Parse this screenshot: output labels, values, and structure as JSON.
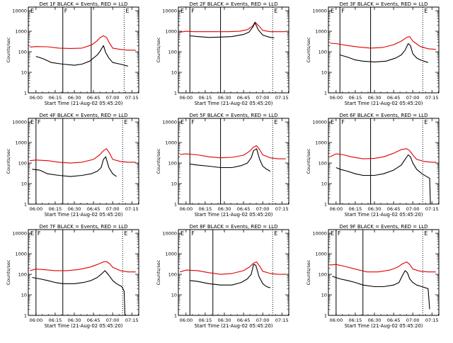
{
  "ylabel": "Counts/sec",
  "xlabel": "Start Time (21-Aug-02 05:45:20)",
  "x_ticks": [
    "06:00",
    "06:15",
    "06:30",
    "06:45",
    "07:00",
    "07:15"
  ],
  "y_ticks": [
    "1",
    "10",
    "100",
    "1000",
    "10000"
  ],
  "colors": {
    "events": "#000000",
    "lld": "#e00000",
    "axis": "#000000",
    "marker": "#000000"
  },
  "chart_data": [
    {
      "type": "line",
      "title": "Det 1F BLACK = Events, RED = LLD",
      "flags": [
        "E",
        "F",
        "E"
      ],
      "lines": {
        "solid": [
          6.35,
          6.72
        ],
        "dotted": [
          7.15
        ]
      },
      "ylim": [
        1,
        15000
      ],
      "xlim": [
        5.9,
        7.34
      ],
      "yscale": "log",
      "series": [
        {
          "color": "red",
          "x": [
            5.92,
            6.0,
            6.15,
            6.3,
            6.45,
            6.6,
            6.73,
            6.8,
            6.84,
            6.88,
            6.92,
            6.95,
            7.0,
            7.1,
            7.2,
            7.3
          ],
          "y": [
            170,
            180,
            175,
            150,
            145,
            150,
            220,
            350,
            500,
            600,
            500,
            300,
            150,
            130,
            120,
            120
          ]
        },
        {
          "color": "black",
          "x": [
            6.0,
            6.1,
            6.2,
            6.35,
            6.5,
            6.6,
            6.7,
            6.75,
            6.8,
            6.83,
            6.86,
            6.88,
            6.91,
            6.95,
            7.0,
            7.1,
            7.2
          ],
          "y": [
            60,
            45,
            30,
            25,
            22,
            25,
            35,
            50,
            70,
            100,
            150,
            200,
            90,
            50,
            30,
            25,
            20
          ]
        }
      ]
    },
    {
      "type": "line",
      "title": "Det 2F BLACK = Events, RED = LLD",
      "flags": [
        "E",
        "F",
        "E"
      ],
      "lines": {
        "solid": [
          6.05,
          6.45
        ],
        "dotted": [
          7.13
        ]
      },
      "ylim": [
        1,
        15000
      ],
      "xlim": [
        5.9,
        7.34
      ],
      "yscale": "log",
      "series": [
        {
          "color": "red",
          "x": [
            5.92,
            6.0,
            6.1,
            6.2,
            6.4,
            6.55,
            6.7,
            6.8,
            6.87,
            6.9,
            6.95,
            7.0,
            7.1,
            7.2,
            7.3
          ],
          "y": [
            900,
            1000,
            950,
            950,
            950,
            950,
            1000,
            1200,
            1800,
            2800,
            1800,
            1100,
            950,
            950,
            950
          ]
        },
        {
          "color": "black",
          "x": [
            6.05,
            6.15,
            6.3,
            6.45,
            6.6,
            6.75,
            6.82,
            6.87,
            6.9,
            6.94,
            7.0,
            7.1,
            7.15
          ],
          "y": [
            600,
            550,
            500,
            520,
            550,
            700,
            900,
            1600,
            2600,
            1200,
            650,
            500,
            480
          ]
        }
      ]
    },
    {
      "type": "line",
      "title": "Det 3F BLACK = Events, RED = LLD",
      "flags": [
        "E",
        "F",
        "E"
      ],
      "lines": {
        "solid": [
          6.05,
          6.45
        ],
        "dotted": [
          7.13
        ]
      },
      "ylim": [
        1,
        15000
      ],
      "xlim": [
        5.9,
        7.34
      ],
      "yscale": "log",
      "series": [
        {
          "color": "red",
          "x": [
            5.92,
            6.0,
            6.15,
            6.3,
            6.45,
            6.6,
            6.75,
            6.85,
            6.92,
            6.96,
            7.0,
            7.1,
            7.2,
            7.3
          ],
          "y": [
            260,
            250,
            200,
            170,
            150,
            160,
            220,
            330,
            500,
            550,
            330,
            180,
            140,
            130
          ]
        },
        {
          "color": "black",
          "x": [
            6.05,
            6.15,
            6.25,
            6.35,
            6.5,
            6.65,
            6.78,
            6.85,
            6.9,
            6.94,
            6.97,
            7.0,
            7.05,
            7.1,
            7.2
          ],
          "y": [
            70,
            55,
            40,
            35,
            32,
            35,
            50,
            70,
            120,
            250,
            200,
            80,
            50,
            40,
            30
          ]
        }
      ]
    },
    {
      "type": "line",
      "title": "Det 4F BLACK = Events, RED = LLD",
      "flags": [
        "E",
        "F",
        "E"
      ],
      "lines": {
        "solid": [
          6.0,
          6.35
        ],
        "dotted": [
          7.13
        ]
      },
      "ylim": [
        1,
        15000
      ],
      "xlim": [
        5.9,
        7.34
      ],
      "yscale": "log",
      "series": [
        {
          "color": "red",
          "x": [
            5.92,
            6.0,
            6.15,
            6.3,
            6.45,
            6.6,
            6.75,
            6.83,
            6.88,
            6.92,
            6.96,
            7.0,
            7.1,
            7.2,
            7.3
          ],
          "y": [
            130,
            140,
            130,
            110,
            100,
            110,
            150,
            250,
            400,
            500,
            300,
            150,
            120,
            110,
            110
          ]
        },
        {
          "color": "black",
          "x": [
            5.95,
            6.05,
            6.15,
            6.3,
            6.45,
            6.6,
            6.72,
            6.8,
            6.85,
            6.88,
            6.91,
            6.95,
            7.0,
            7.05
          ],
          "y": [
            50,
            45,
            30,
            25,
            22,
            25,
            30,
            40,
            60,
            150,
            200,
            60,
            30,
            22
          ]
        }
      ]
    },
    {
      "type": "line",
      "title": "Det 5F BLACK = Events, RED = LLD",
      "flags": [
        "E",
        "F",
        "E"
      ],
      "lines": {
        "solid": [
          6.05,
          6.45
        ],
        "dotted": [
          7.13
        ]
      },
      "ylim": [
        1,
        15000
      ],
      "xlim": [
        5.9,
        7.34
      ],
      "yscale": "log",
      "series": [
        {
          "color": "red",
          "x": [
            5.92,
            6.0,
            6.15,
            6.3,
            6.45,
            6.6,
            6.75,
            6.83,
            6.88,
            6.92,
            6.96,
            7.0,
            7.1,
            7.2,
            7.3
          ],
          "y": [
            260,
            280,
            250,
            200,
            180,
            190,
            240,
            380,
            600,
            700,
            450,
            250,
            180,
            160,
            160
          ]
        },
        {
          "color": "black",
          "x": [
            6.05,
            6.15,
            6.3,
            6.45,
            6.6,
            6.72,
            6.8,
            6.85,
            6.88,
            6.92,
            6.96,
            7.0,
            7.05,
            7.1
          ],
          "y": [
            90,
            80,
            70,
            60,
            60,
            75,
            100,
            180,
            400,
            500,
            150,
            70,
            50,
            40
          ]
        }
      ]
    },
    {
      "type": "line",
      "title": "Det 6F BLACK = Events, RED = LLD",
      "flags": [
        "E",
        "F",
        "E"
      ],
      "lines": {
        "solid": [
          6.05,
          6.45
        ],
        "dotted": [
          7.13
        ]
      },
      "ylim": [
        1,
        15000
      ],
      "xlim": [
        5.9,
        7.34
      ],
      "yscale": "log",
      "series": [
        {
          "color": "red",
          "x": [
            5.92,
            6.0,
            6.1,
            6.2,
            6.35,
            6.5,
            6.62,
            6.75,
            6.85,
            6.92,
            6.96,
            7.0,
            7.05,
            7.15,
            7.25,
            7.3
          ],
          "y": [
            200,
            280,
            250,
            200,
            160,
            170,
            200,
            300,
            450,
            500,
            400,
            250,
            150,
            120,
            110,
            110
          ]
        },
        {
          "color": "black",
          "x": [
            6.0,
            6.05,
            6.15,
            6.25,
            6.35,
            6.5,
            6.62,
            6.75,
            6.85,
            6.9,
            6.94,
            6.97,
            7.0,
            7.05,
            7.12,
            7.2,
            7.22,
            7.23
          ],
          "y": [
            60,
            50,
            40,
            30,
            25,
            25,
            30,
            45,
            80,
            150,
            250,
            200,
            100,
            50,
            30,
            20,
            18,
            1
          ]
        }
      ]
    },
    {
      "type": "line",
      "title": "Det 7F BLACK = Events, RED = LLD",
      "flags": [
        "E",
        "F",
        "E"
      ],
      "lines": {
        "solid": [
          6.0,
          6.35
        ],
        "dotted": [
          7.13
        ]
      },
      "ylim": [
        1,
        15000
      ],
      "xlim": [
        5.9,
        7.34
      ],
      "yscale": "log",
      "series": [
        {
          "color": "red",
          "x": [
            5.92,
            6.0,
            6.1,
            6.25,
            6.4,
            6.55,
            6.7,
            6.8,
            6.88,
            6.92,
            6.96,
            7.0,
            7.1,
            7.2,
            7.3
          ],
          "y": [
            150,
            180,
            170,
            150,
            150,
            170,
            220,
            300,
            400,
            420,
            330,
            220,
            150,
            130,
            130
          ]
        },
        {
          "color": "black",
          "x": [
            5.95,
            6.05,
            6.15,
            6.25,
            6.35,
            6.5,
            6.62,
            6.72,
            6.8,
            6.85,
            6.9,
            6.95,
            7.0,
            7.05,
            7.12,
            7.15,
            7.16
          ],
          "y": [
            70,
            60,
            50,
            40,
            35,
            35,
            40,
            50,
            70,
            100,
            150,
            90,
            50,
            35,
            25,
            15,
            1
          ]
        }
      ]
    },
    {
      "type": "line",
      "title": "Det 8F BLACK = Events, RED = LLD",
      "flags": [
        "E",
        "F",
        "E"
      ],
      "lines": {
        "solid": [
          6.05,
          6.35
        ],
        "dotted": [
          7.13
        ]
      },
      "ylim": [
        1,
        15000
      ],
      "xlim": [
        5.9,
        7.34
      ],
      "yscale": "log",
      "series": [
        {
          "color": "red",
          "x": [
            5.92,
            6.0,
            6.15,
            6.3,
            6.45,
            6.6,
            6.75,
            6.83,
            6.88,
            6.92,
            6.96,
            7.0,
            7.1,
            7.2,
            7.3
          ],
          "y": [
            130,
            160,
            150,
            120,
            100,
            110,
            150,
            230,
            350,
            400,
            250,
            140,
            110,
            100,
            100
          ]
        },
        {
          "color": "black",
          "x": [
            6.05,
            6.15,
            6.3,
            6.45,
            6.6,
            6.72,
            6.8,
            6.85,
            6.88,
            6.91,
            6.95,
            7.0,
            7.05,
            7.1
          ],
          "y": [
            50,
            45,
            35,
            30,
            30,
            40,
            60,
            100,
            300,
            280,
            80,
            35,
            25,
            22
          ]
        }
      ]
    },
    {
      "type": "line",
      "title": "Det 9F BLACK = Events, RED = LLD",
      "flags": [
        "E",
        "F",
        "E"
      ],
      "lines": {
        "solid": [
          6.0,
          6.35
        ],
        "dotted": [
          7.13
        ]
      },
      "ylim": [
        1,
        15000
      ],
      "xlim": [
        5.9,
        7.34
      ],
      "yscale": "log",
      "series": [
        {
          "color": "red",
          "x": [
            5.92,
            6.0,
            6.1,
            6.25,
            6.4,
            6.55,
            6.7,
            6.8,
            6.87,
            6.92,
            6.96,
            7.0,
            7.1,
            7.2,
            7.3
          ],
          "y": [
            280,
            300,
            250,
            180,
            130,
            130,
            160,
            220,
            330,
            400,
            300,
            180,
            140,
            130,
            130
          ]
        },
        {
          "color": "black",
          "x": [
            5.95,
            6.05,
            6.15,
            6.25,
            6.35,
            6.5,
            6.62,
            6.75,
            6.82,
            6.86,
            6.9,
            6.93,
            6.96,
            7.0,
            7.05,
            7.12,
            7.2,
            7.22
          ],
          "y": [
            80,
            60,
            50,
            40,
            30,
            25,
            25,
            30,
            40,
            80,
            150,
            120,
            60,
            40,
            30,
            25,
            20,
            2
          ]
        }
      ]
    }
  ]
}
